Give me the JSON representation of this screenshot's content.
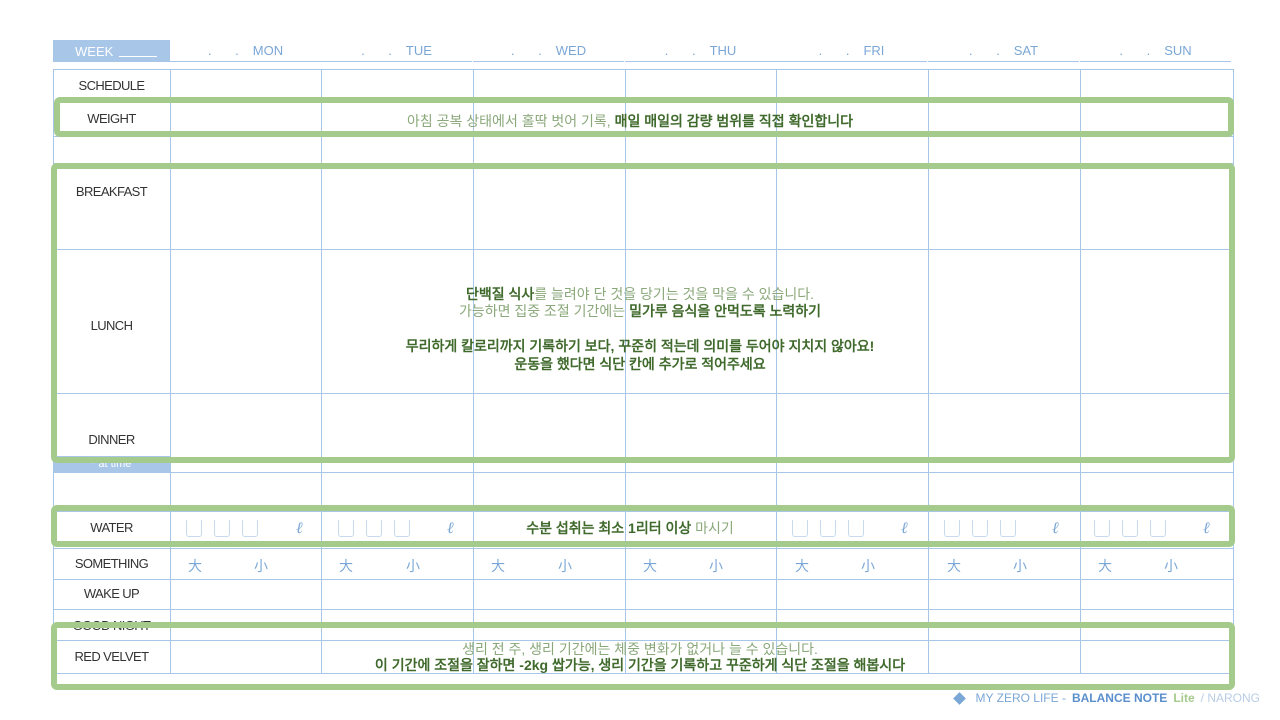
{
  "header": {
    "week_label": "WEEK",
    "days": [
      "MON",
      "TUE",
      "WED",
      "THU",
      "FRI",
      "SAT",
      "SUN"
    ],
    "date_dots": ". ."
  },
  "rows": {
    "schedule": "SCHEDULE",
    "weight": "WEIGHT",
    "breakfast": "BREAKFAST",
    "lunch": "LUNCH",
    "dinner": "DINNER",
    "eat_time": "* at time",
    "water": "WATER",
    "something": "SOMETHING",
    "wake_up": "WAKE UP",
    "good_night": "GOOD NIGHT",
    "red_velvet": "RED VELVET"
  },
  "notes": {
    "weight_light": "아침 공복 상태에서 홀딱 벗어 기록,",
    "weight_dark": "매일 매일의 감량 범위를 직접 확인합니다",
    "meal_1_dark": "단백질 식사",
    "meal_1_light": "를 늘려야 단 것을 당기는 것을 막을 수 있습니다.",
    "meal_2_light": "가능하면 집중 조절 기간에는",
    "meal_2_dark": "밀가루 음식을 안먹도록 노력하기",
    "meal_3": "무리하게 칼로리까지 기록하기 보다, 꾸준히 적는데 의미를 두어야 지치지 않아요!",
    "meal_4": "운동을 했다면 식단 칸에 추가로 적어주세요",
    "water_dark": "수분 섭취는 최소 1리터 이상",
    "water_light": "마시기",
    "period_1": "생리 전 주, 생리 기간에는 체중 변화가 없거나 늘 수 있습니다.",
    "period_2": "이 기간에 조절을 잘하면 -2kg 쌉가능, 생리 기간을 기록하고 꾸준하게 식단 조절을 해봅시다"
  },
  "water_unit": "ℓ",
  "something_marks": [
    "大",
    "小"
  ],
  "footer": {
    "prefix": "MY ZERO LIFE -",
    "brand": "BALANCE NOTE",
    "lite": "Lite",
    "author": "/ NARONG"
  },
  "colors": {
    "accent_blue": "#a7c6e8",
    "text_blue": "#7ba7d6",
    "frame_green": "#a4cb8c",
    "note_dark_green": "#3f6a2c"
  }
}
